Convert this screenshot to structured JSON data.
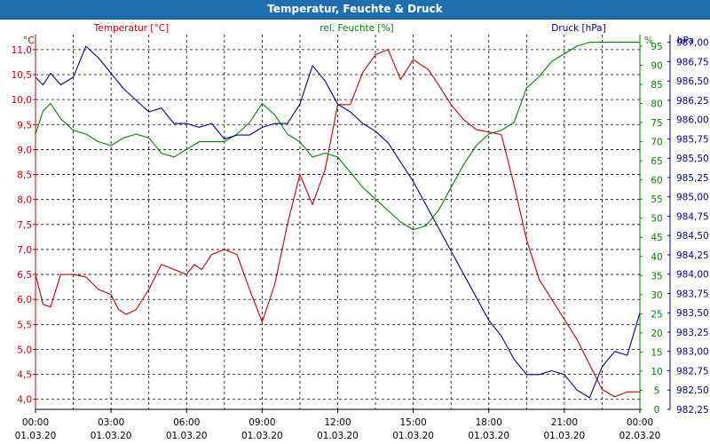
{
  "title": "Temperatur, Feuchte & Druck",
  "colors": {
    "temperature": "#c00000",
    "humidity": "#008000",
    "pressure": "#00008b",
    "grid": "#000000",
    "header": "#1f6fae"
  },
  "chart_data": {
    "type": "line",
    "title": "Temperatur, Feuchte & Druck",
    "x_ticks": [
      {
        "time": "00:00",
        "date": "01.03.20"
      },
      {
        "time": "03:00",
        "date": "01.03.20"
      },
      {
        "time": "06:00",
        "date": "01.03.20"
      },
      {
        "time": "09:00",
        "date": "01.03.20"
      },
      {
        "time": "12:00",
        "date": "01.03.20"
      },
      {
        "time": "15:00",
        "date": "01.03.20"
      },
      {
        "time": "18:00",
        "date": "01.03.20"
      },
      {
        "time": "21:00",
        "date": "01.03.20"
      },
      {
        "time": "00:00",
        "date": "02.03.20"
      }
    ],
    "xlim_hours": [
      0,
      24
    ],
    "axes": {
      "temperature": {
        "unit": "°C",
        "label": "Temperatur [°C]",
        "ylim": [
          3.8,
          11.3
        ],
        "ticks": [
          "4,0",
          "4,5",
          "5,0",
          "5,5",
          "6,0",
          "6,5",
          "7,0",
          "7,5",
          "8,0",
          "8,5",
          "9,0",
          "9,5",
          "10,0",
          "10,5",
          "11,0"
        ]
      },
      "humidity": {
        "unit": "%",
        "label": "rel. Feuchte [%]",
        "ylim": [
          0,
          98
        ],
        "ticks": [
          "0",
          "5",
          "10",
          "15",
          "20",
          "25",
          "30",
          "35",
          "40",
          "45",
          "50",
          "55",
          "60",
          "65",
          "70",
          "75",
          "80",
          "85",
          "90",
          "95"
        ]
      },
      "pressure": {
        "unit": "hPa",
        "label": "Druck [hPa]",
        "ylim": [
          982.25,
          987.1
        ],
        "ticks": [
          "982,25",
          "982,50",
          "982,75",
          "983,00",
          "983,25",
          "983,50",
          "983,75",
          "984,00",
          "984,25",
          "984,50",
          "984,75",
          "985,00",
          "985,25",
          "985,50",
          "985,75",
          "986,00",
          "986,25",
          "986,50",
          "986,75",
          "987,00"
        ]
      }
    },
    "series": [
      {
        "name": "Temperatur [°C]",
        "axis": "temperature",
        "hours": [
          0,
          0.3,
          0.6,
          1.0,
          1.5,
          2.0,
          2.5,
          3.0,
          3.3,
          3.6,
          4.0,
          4.5,
          5.0,
          5.5,
          6.0,
          6.3,
          6.6,
          7.0,
          7.5,
          8.0,
          8.5,
          9.0,
          9.5,
          10.0,
          10.5,
          11.0,
          11.5,
          12.0,
          12.5,
          13.0,
          13.5,
          14.0,
          14.5,
          15.0,
          15.3,
          15.6,
          16.0,
          16.5,
          17.0,
          17.5,
          18.0,
          18.5,
          19.0,
          19.5,
          20.0,
          20.5,
          21.0,
          21.5,
          22.0,
          22.5,
          23.0,
          23.5,
          24.0
        ],
        "values": [
          6.5,
          5.9,
          5.85,
          6.5,
          6.5,
          6.45,
          6.2,
          6.1,
          5.8,
          5.7,
          5.8,
          6.2,
          6.7,
          6.6,
          6.5,
          6.7,
          6.6,
          6.9,
          7.0,
          6.9,
          6.2,
          5.55,
          6.3,
          7.5,
          8.5,
          7.9,
          8.6,
          9.9,
          9.9,
          10.55,
          10.9,
          11.0,
          10.4,
          10.8,
          10.7,
          10.6,
          10.3,
          9.9,
          9.6,
          9.4,
          9.35,
          9.3,
          8.3,
          7.2,
          6.4,
          6.0,
          5.6,
          5.2,
          4.7,
          4.2,
          4.05,
          4.15,
          4.15
        ]
      },
      {
        "name": "rel. Feuchte [%]",
        "axis": "humidity",
        "hours": [
          0,
          0.3,
          0.6,
          1.0,
          1.5,
          2.0,
          2.5,
          3.0,
          3.5,
          4.0,
          4.5,
          5.0,
          5.5,
          6.0,
          6.5,
          7.0,
          7.5,
          8.0,
          8.5,
          9.0,
          9.5,
          10.0,
          10.5,
          11.0,
          11.5,
          12.0,
          12.5,
          13.0,
          13.5,
          14.0,
          14.5,
          15.0,
          15.5,
          16.0,
          16.5,
          17.0,
          17.5,
          18.0,
          18.5,
          19.0,
          19.5,
          20.0,
          20.5,
          21.0,
          21.5,
          22.0,
          22.5,
          23.0,
          23.5,
          24.0
        ],
        "values": [
          72,
          78,
          80,
          76,
          73,
          72,
          70,
          69,
          71,
          72,
          71,
          67,
          66,
          68,
          70,
          70,
          70,
          72,
          75,
          80,
          77,
          72,
          70,
          66,
          67,
          66,
          62,
          58,
          55,
          52,
          49,
          47,
          48,
          52,
          58,
          64,
          69,
          72,
          73,
          75,
          84,
          87,
          91,
          93,
          95,
          96,
          96,
          96,
          96,
          96
        ]
      },
      {
        "name": "Druck [hPa]",
        "axis": "pressure",
        "hours": [
          0,
          0.3,
          0.6,
          1.0,
          1.5,
          2.0,
          2.5,
          3.0,
          3.5,
          4.0,
          4.5,
          5.0,
          5.5,
          6.0,
          6.5,
          7.0,
          7.5,
          8.0,
          8.5,
          9.0,
          9.5,
          10.0,
          10.5,
          11.0,
          11.5,
          12.0,
          12.5,
          13.0,
          13.5,
          14.0,
          14.5,
          15.0,
          15.5,
          16.0,
          16.5,
          17.0,
          17.5,
          18.0,
          18.5,
          19.0,
          19.5,
          20.0,
          20.5,
          21.0,
          21.5,
          22.0,
          22.5,
          23.0,
          23.5,
          24.0
        ],
        "values": [
          986.55,
          986.45,
          986.6,
          986.45,
          986.55,
          986.95,
          986.8,
          986.6,
          986.4,
          986.25,
          986.1,
          986.15,
          985.95,
          985.95,
          985.9,
          985.95,
          985.75,
          985.8,
          985.8,
          985.9,
          985.95,
          985.95,
          986.2,
          986.7,
          986.5,
          986.2,
          986.1,
          985.95,
          985.85,
          985.7,
          985.45,
          985.2,
          984.9,
          984.6,
          984.3,
          984.0,
          983.7,
          983.4,
          983.2,
          982.9,
          982.7,
          982.7,
          982.75,
          982.7,
          982.5,
          982.4,
          982.8,
          983.0,
          982.95,
          983.5
        ]
      }
    ]
  }
}
